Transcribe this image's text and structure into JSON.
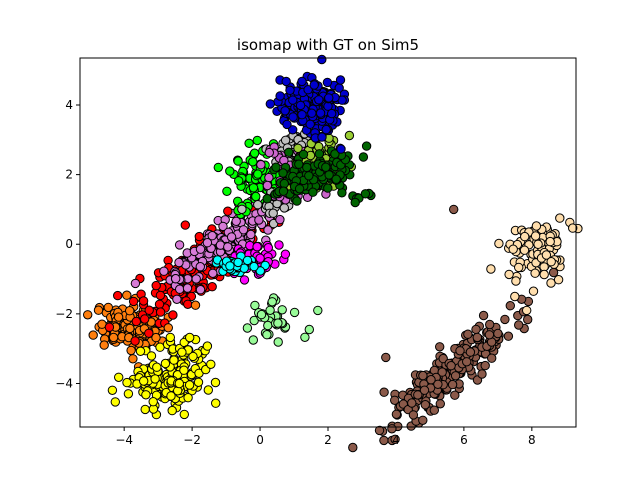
{
  "chart_data": {
    "type": "scatter",
    "title": "isomap with GT on Sim5",
    "xlabel": "",
    "ylabel": "",
    "xlim": [
      -5.3,
      9.3
    ],
    "ylim": [
      -5.25,
      5.35
    ],
    "xticks": [
      -4,
      -2,
      0,
      2,
      4,
      6,
      8
    ],
    "yticks": [
      -4,
      -2,
      0,
      2,
      4
    ],
    "grid": false,
    "marker_edge_color": "#000000",
    "clusters": [
      {
        "color": "#ff7f0e",
        "center": [
          -3.9,
          -2.4
        ],
        "spread": [
          0.45,
          0.3
        ],
        "count": 160,
        "rotation": -5
      },
      {
        "color": "#ffff00",
        "center": [
          -2.7,
          -3.9
        ],
        "spread": [
          0.55,
          0.35
        ],
        "count": 170,
        "rotation": 5
      },
      {
        "color": "#ffff00",
        "center": [
          -2.2,
          -3.0
        ],
        "spread": [
          0.3,
          0.2
        ],
        "count": 20,
        "rotation": 0
      },
      {
        "color": "#ff0000",
        "center": [
          -1.6,
          -0.6
        ],
        "spread": [
          1.1,
          0.28
        ],
        "count": 230,
        "rotation": 38
      },
      {
        "color": "#d67bd6",
        "center": [
          -1.2,
          0.0
        ],
        "spread": [
          1.0,
          0.3
        ],
        "count": 170,
        "rotation": 38
      },
      {
        "color": "#ff00ff",
        "center": [
          -0.1,
          -0.4
        ],
        "spread": [
          0.4,
          0.25
        ],
        "count": 55,
        "rotation": 10
      },
      {
        "color": "#00ffff",
        "center": [
          -0.7,
          -0.65
        ],
        "spread": [
          0.35,
          0.12
        ],
        "count": 40,
        "rotation": 0
      },
      {
        "color": "#00ff00",
        "center": [
          -0.1,
          1.9
        ],
        "spread": [
          0.45,
          0.45
        ],
        "count": 80,
        "rotation": 40
      },
      {
        "color": "#c0c0c0",
        "center": [
          1.1,
          2.8
        ],
        "spread": [
          0.35,
          0.2
        ],
        "count": 60,
        "rotation": 20
      },
      {
        "color": "#c0c0c0",
        "center": [
          0.5,
          1.2
        ],
        "spread": [
          0.3,
          0.2
        ],
        "count": 30,
        "rotation": 20
      },
      {
        "color": "#cc66cc",
        "center": [
          0.8,
          1.9
        ],
        "spread": [
          0.4,
          0.4
        ],
        "count": 60,
        "rotation": 30
      },
      {
        "color": "#9acd32",
        "center": [
          1.8,
          2.4
        ],
        "spread": [
          0.4,
          0.3
        ],
        "count": 80,
        "rotation": 20
      },
      {
        "color": "#006400",
        "center": [
          1.5,
          2.0
        ],
        "spread": [
          0.6,
          0.3
        ],
        "count": 130,
        "rotation": 15
      },
      {
        "color": "#006400",
        "center": [
          2.9,
          1.4
        ],
        "spread": [
          0.12,
          0.12
        ],
        "count": 6,
        "rotation": 0
      },
      {
        "color": "#0000cd",
        "center": [
          1.5,
          4.0
        ],
        "spread": [
          0.45,
          0.38
        ],
        "count": 210,
        "rotation": 0
      },
      {
        "color": "#98fb98",
        "center": [
          0.4,
          -2.1
        ],
        "spread": [
          0.35,
          0.3
        ],
        "count": 32,
        "rotation": 40
      },
      {
        "color": "#8b5a4a",
        "center": [
          5.5,
          -3.7
        ],
        "spread": [
          1.25,
          0.28
        ],
        "count": 230,
        "rotation": 40
      },
      {
        "color": "#ffdead",
        "center": [
          8.1,
          -0.05
        ],
        "spread": [
          0.4,
          0.55
        ],
        "count": 65,
        "rotation": -40
      },
      {
        "color": "#ffdead",
        "center": [
          8.5,
          -0.3
        ],
        "spread": [
          0.25,
          0.45
        ],
        "count": 30,
        "rotation": 0
      }
    ],
    "sparse_points": [
      {
        "color": "#98fb98",
        "points": [
          [
            1.7,
            -1.9
          ],
          [
            1.45,
            -2.45
          ],
          [
            -0.2,
            -2.75
          ]
        ]
      },
      {
        "color": "#8b5a4a",
        "points": [
          [
            5.7,
            1.0
          ],
          [
            3.7,
            -3.25
          ],
          [
            3.65,
            -4.25
          ],
          [
            6.75,
            -2.6
          ]
        ]
      },
      {
        "color": "#ffdead",
        "points": [
          [
            7.5,
            -1.5
          ],
          [
            7.85,
            -1.9
          ],
          [
            8.05,
            -1.35
          ]
        ]
      },
      {
        "color": "#ffff00",
        "points": [
          [
            -1.6,
            -3.6
          ],
          [
            -1.45,
            -3.45
          ],
          [
            -2.3,
            -3.1
          ]
        ]
      },
      {
        "color": "#ff7f0e",
        "points": [
          [
            -1.9,
            -1.75
          ],
          [
            -2.7,
            -2.4
          ]
        ]
      },
      {
        "color": "#ff0000",
        "points": [
          [
            -2.2,
            0.55
          ],
          [
            -0.95,
            0.95
          ]
        ]
      },
      {
        "color": "#006400",
        "points": [
          [
            2.8,
            1.2
          ],
          [
            3.1,
            1.45
          ]
        ]
      }
    ]
  }
}
